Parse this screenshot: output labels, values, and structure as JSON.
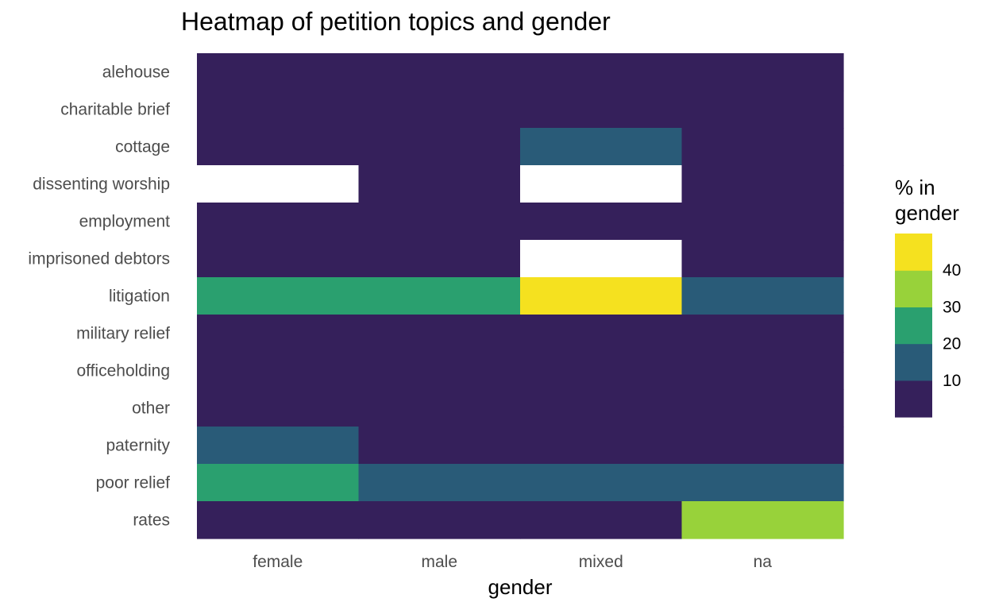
{
  "chart_data": {
    "type": "heatmap",
    "title": "Heatmap of petition topics and gender",
    "xlabel": "gender",
    "ylabel": "",
    "x_categories": [
      "female",
      "male",
      "mixed",
      "na"
    ],
    "y_categories": [
      "alehouse",
      "charitable brief",
      "cottage",
      "dissenting worship",
      "employment",
      "imprisoned debtors",
      "litigation",
      "military relief",
      "officeholding",
      "other",
      "paternity",
      "poor relief",
      "rates"
    ],
    "values": [
      [
        5,
        5,
        5,
        5
      ],
      [
        5,
        5,
        5,
        5
      ],
      [
        5,
        5,
        15,
        5
      ],
      [
        null,
        5,
        null,
        5
      ],
      [
        5,
        5,
        5,
        5
      ],
      [
        5,
        5,
        null,
        5
      ],
      [
        25,
        25,
        45,
        15
      ],
      [
        5,
        5,
        5,
        5
      ],
      [
        5,
        5,
        5,
        5
      ],
      [
        5,
        5,
        5,
        5
      ],
      [
        15,
        5,
        5,
        5
      ],
      [
        25,
        15,
        15,
        15
      ],
      [
        5,
        5,
        5,
        35
      ]
    ],
    "legend": {
      "title": "% in gender",
      "title_lines": [
        "% in",
        "gender"
      ],
      "placement": "right",
      "bins": [
        {
          "min": 0,
          "max": 10,
          "color": "#35205b"
        },
        {
          "min": 10,
          "max": 20,
          "color": "#295b78"
        },
        {
          "min": 20,
          "max": 30,
          "color": "#2aa06f"
        },
        {
          "min": 30,
          "max": 40,
          "color": "#98d23a"
        },
        {
          "min": 40,
          "max": 50,
          "color": "#f5e11f"
        }
      ],
      "tick_labels": [
        "10",
        "20",
        "30",
        "40"
      ]
    },
    "missing_color": "#ffffff",
    "grid": false
  }
}
